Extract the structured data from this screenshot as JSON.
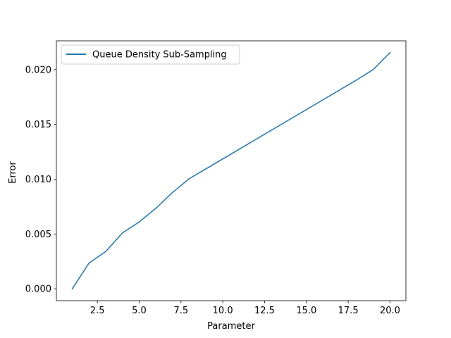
{
  "chart_data": {
    "type": "line",
    "title": "",
    "xlabel": "Parameter",
    "ylabel": "Error",
    "xlim": [
      0.05,
      20.95
    ],
    "ylim": [
      -0.00108,
      0.02262
    ],
    "grid": false,
    "legend_position": "top-left",
    "x_ticks": [
      2.5,
      5.0,
      7.5,
      10.0,
      12.5,
      15.0,
      17.5,
      20.0
    ],
    "x_tick_labels": [
      "2.5",
      "5.0",
      "7.5",
      "10.0",
      "12.5",
      "15.0",
      "17.5",
      "20.0"
    ],
    "y_ticks": [
      0.0,
      0.005,
      0.01,
      0.015,
      0.02
    ],
    "y_tick_labels": [
      "0.000",
      "0.005",
      "0.010",
      "0.015",
      "0.020"
    ],
    "series": [
      {
        "name": "Queue Density Sub-Sampling",
        "color": "#1f77b4",
        "x": [
          1,
          2,
          3,
          4,
          5,
          6,
          7,
          8,
          9,
          10,
          11,
          12,
          13,
          14,
          15,
          16,
          17,
          18,
          19,
          20
        ],
        "y": [
          0.0,
          0.00235,
          0.0034,
          0.0051,
          0.0061,
          0.00735,
          0.0088,
          0.01005,
          0.01095,
          0.01185,
          0.01275,
          0.01365,
          0.01455,
          0.01545,
          0.01635,
          0.01725,
          0.01815,
          0.01905,
          0.02,
          0.02155
        ]
      }
    ]
  }
}
